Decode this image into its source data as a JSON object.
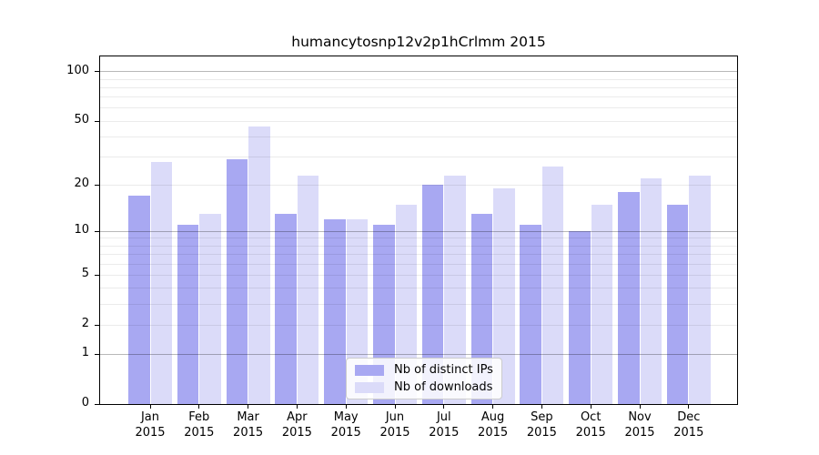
{
  "chart_data": {
    "type": "bar",
    "title": "humancytosnp12v2p1hCrlmm 2015",
    "categories": [
      "Jan",
      "Feb",
      "Mar",
      "Apr",
      "May",
      "Jun",
      "Jul",
      "Aug",
      "Sep",
      "Oct",
      "Nov",
      "Dec"
    ],
    "year_label": "2015",
    "series": [
      {
        "name": "Nb of distinct IPs",
        "color": "#a8a8f2",
        "values": [
          17,
          11,
          29,
          13,
          12,
          11,
          20,
          13,
          11,
          10,
          18,
          15
        ]
      },
      {
        "name": "Nb of downloads",
        "color": "#dbdbf9",
        "values": [
          28,
          13,
          46,
          23,
          12,
          15,
          23,
          19,
          26,
          15,
          22,
          23
        ]
      }
    ],
    "yscale": "log1p",
    "ylim": [
      0,
      125
    ],
    "y_ticks": [
      100,
      50,
      20,
      10,
      5,
      2,
      1,
      0
    ],
    "grid_minor": [
      2,
      3,
      4,
      5,
      6,
      7,
      8,
      9,
      20,
      30,
      40,
      50,
      60,
      70,
      80,
      90
    ],
    "grid_major": [
      1,
      10,
      100
    ],
    "legend_position": "lower-center",
    "colors": {
      "grid_minor": "rgba(0,0,0,0.08)",
      "grid_major": "rgba(0,0,0,0.28)",
      "axis": "#000000",
      "background": "#ffffff"
    }
  }
}
